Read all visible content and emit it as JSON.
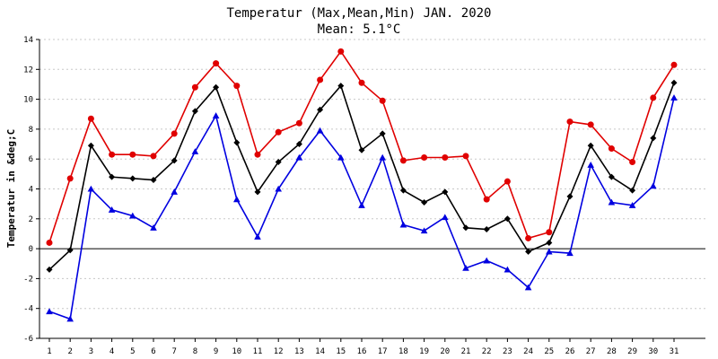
{
  "chart_data": {
    "type": "line",
    "title": "Temperatur (Max,Mean,Min) JAN. 2020",
    "subtitle": "Mean: 5.1°C",
    "xlabel": "",
    "ylabel": "Temperatur in &deg;C",
    "x": [
      1,
      2,
      3,
      4,
      5,
      6,
      7,
      8,
      9,
      10,
      11,
      12,
      13,
      14,
      15,
      16,
      17,
      18,
      19,
      20,
      21,
      22,
      23,
      24,
      25,
      26,
      27,
      28,
      29,
      30,
      31
    ],
    "ylim": [
      -6,
      14
    ],
    "yticks": [
      -6,
      -4,
      -2,
      0,
      2,
      4,
      6,
      8,
      10,
      12,
      14
    ],
    "grid": true,
    "series": [
      {
        "color": "#e00000",
        "marker": "circle",
        "values": [
          0.4,
          4.7,
          8.7,
          6.3,
          6.3,
          6.2,
          7.7,
          10.8,
          12.4,
          10.9,
          6.3,
          7.8,
          8.4,
          11.3,
          13.2,
          11.1,
          9.9,
          5.9,
          6.1,
          6.1,
          6.2,
          3.3,
          4.5,
          0.7,
          1.1,
          8.5,
          8.3,
          6.7,
          5.8,
          10.1,
          12.3
        ]
      },
      {
        "color": "#000000",
        "marker": "diamond",
        "values": [
          -1.4,
          -0.1,
          6.9,
          4.8,
          4.7,
          4.6,
          5.9,
          9.2,
          10.8,
          7.1,
          3.8,
          5.8,
          7.0,
          9.3,
          10.9,
          6.6,
          7.7,
          3.9,
          3.1,
          3.8,
          1.4,
          1.3,
          2.0,
          -0.2,
          0.4,
          3.5,
          6.9,
          4.8,
          3.9,
          7.4,
          11.1
        ]
      },
      {
        "color": "#0000e0",
        "marker": "triangle",
        "values": [
          -4.2,
          -4.7,
          4.0,
          2.6,
          2.2,
          1.4,
          3.8,
          6.5,
          8.9,
          3.3,
          0.8,
          4.0,
          6.1,
          7.9,
          6.1,
          2.9,
          6.1,
          1.6,
          1.2,
          2.1,
          -1.3,
          -0.8,
          -1.4,
          -2.6,
          -0.2,
          -0.3,
          5.6,
          3.1,
          2.9,
          4.2,
          10.1
        ]
      }
    ]
  }
}
